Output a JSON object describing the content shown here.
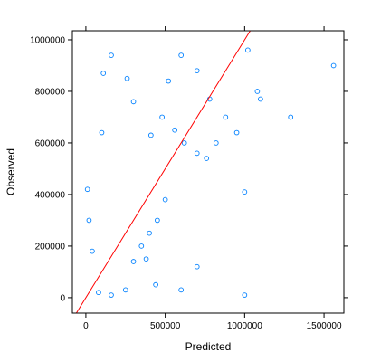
{
  "chart_data": {
    "type": "scatter",
    "title": "",
    "xlabel": "Predicted",
    "ylabel": "Observed",
    "xlim": [
      -85000,
      1625000
    ],
    "ylim": [
      -60000,
      1035000
    ],
    "x_ticks": [
      0,
      500000,
      1000000,
      1500000
    ],
    "x_tick_labels": [
      "0",
      "500000",
      "1000000",
      "1500000"
    ],
    "y_ticks": [
      0,
      200000,
      400000,
      600000,
      800000,
      1000000
    ],
    "y_tick_labels": [
      "0",
      "200000",
      "400000",
      "600000",
      "800000",
      "1000000"
    ],
    "grid": false,
    "point_color": "#0080ff",
    "line_color": "#ff0000",
    "reference_line": {
      "label": "y = x",
      "slope": 1,
      "intercept": 0
    },
    "series": [
      {
        "points": [
          [
            100000,
            640000
          ],
          [
            300000,
            760000
          ],
          [
            520000,
            840000
          ],
          [
            600000,
            940000
          ],
          [
            700000,
            880000
          ],
          [
            780000,
            770000
          ],
          [
            880000,
            700000
          ],
          [
            950000,
            640000
          ],
          [
            1000000,
            410000
          ],
          [
            1020000,
            960000
          ],
          [
            1080000,
            800000
          ],
          [
            1100000,
            770000
          ],
          [
            1290000,
            700000
          ],
          [
            1560000,
            900000
          ],
          [
            1000000,
            10000
          ],
          [
            700000,
            120000
          ],
          [
            600000,
            30000
          ],
          [
            440000,
            50000
          ],
          [
            380000,
            150000
          ],
          [
            250000,
            30000
          ],
          [
            160000,
            10000
          ],
          [
            80000,
            20000
          ],
          [
            40000,
            180000
          ],
          [
            20000,
            300000
          ],
          [
            10000,
            420000
          ],
          [
            110000,
            870000
          ],
          [
            160000,
            940000
          ],
          [
            260000,
            850000
          ],
          [
            410000,
            630000
          ],
          [
            480000,
            700000
          ],
          [
            560000,
            650000
          ],
          [
            620000,
            600000
          ],
          [
            700000,
            560000
          ],
          [
            760000,
            540000
          ],
          [
            820000,
            600000
          ],
          [
            500000,
            380000
          ],
          [
            450000,
            300000
          ],
          [
            400000,
            250000
          ],
          [
            350000,
            200000
          ],
          [
            300000,
            140000
          ]
        ]
      }
    ]
  }
}
